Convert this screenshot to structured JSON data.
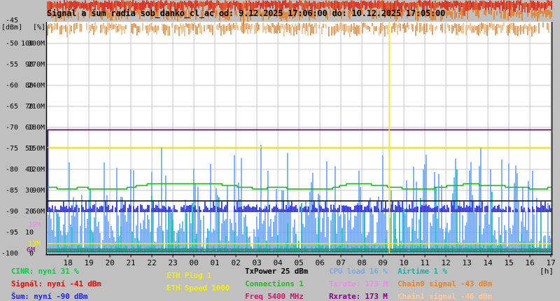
{
  "title": "Signál a šum radia sob_danko_cl_ac od: 9.12.2025 17:06:00 do: 10.12.2025 17:05:00",
  "chart_data": {
    "type": "line",
    "title": "Signál a šum radia sob_danko_cl_ac od: 9.12.2025 17:06:00 do: 10.12.2025 17:05:00",
    "time_from": "9.12.2025 17:06:00",
    "time_to": "10.12.2025 17:05:00",
    "xlabel": "[h]",
    "x_ticks": [
      "18",
      "19",
      "20",
      "21",
      "22",
      "23",
      "00",
      "01",
      "02",
      "03",
      "04",
      "05",
      "06",
      "07",
      "08",
      "09",
      "10",
      "11",
      "12",
      "13",
      "14",
      "15",
      "16",
      "17"
    ],
    "grid": true,
    "y_axis_units": {
      "dbm_unit": "[dBm]",
      "pct_unit": "[%]",
      "dbm_top": "-45"
    },
    "y_axis_rows": [
      {
        "dbm": "-50",
        "pct": "100",
        "m": "300M"
      },
      {
        "dbm": "-55",
        "pct": "90",
        "m": "270M"
      },
      {
        "dbm": "-60",
        "pct": "80",
        "m": "240M"
      },
      {
        "dbm": "-65",
        "pct": "70",
        "m": "210M"
      },
      {
        "dbm": "-70",
        "pct": "60",
        "m": "180M"
      },
      {
        "dbm": "-75",
        "pct": "50",
        "m": "150M"
      },
      {
        "dbm": "-80",
        "pct": "40",
        "m": "120M"
      },
      {
        "dbm": "-85",
        "pct": "30",
        "m": "90M"
      },
      {
        "dbm": "-90",
        "pct": "20",
        "m": "60M"
      },
      {
        "dbm": "-95",
        "pct": "10",
        "m": ""
      },
      {
        "dbm": "-100",
        "pct": "0",
        "m": ""
      }
    ],
    "extra_axis_markers": [
      {
        "label": "39M",
        "color": "#EE8CEE",
        "value_m": 39
      },
      {
        "label": "13M",
        "color": "#F0F000",
        "value_m": 13
      },
      {
        "label": "6M",
        "color": "#880088",
        "value_m": 6
      }
    ],
    "series": [
      {
        "name": "Signál",
        "unit": "dBm",
        "color": "#FF2000",
        "current": -41,
        "range": [
          -43,
          -40
        ],
        "style": "noisy band clipped above scale top"
      },
      {
        "name": "Chain0 signal",
        "unit": "dBm",
        "color": "#FF7800",
        "current": -43,
        "range": [
          -44,
          -42
        ],
        "style": "noisy band"
      },
      {
        "name": "Chain1 signal",
        "unit": "dBm",
        "color": "#FFB468",
        "current": -46,
        "range": [
          -48,
          -45
        ],
        "style": "noisy band"
      },
      {
        "name": "Šum",
        "unit": "dBm",
        "color": "#2020CC",
        "current": -90,
        "range": [
          -90,
          -88
        ],
        "style": "noisy band just above -90"
      },
      {
        "name": "CINR",
        "unit": "%",
        "color": "#00C000",
        "current": 31,
        "range": [
          31,
          33
        ],
        "style": "stepped line"
      },
      {
        "name": "TxPower",
        "unit": "dBm",
        "color": "#000000",
        "current": 25,
        "style": "flat line at 25 on % scale"
      },
      {
        "name": "CPU load",
        "unit": "%",
        "color": "#6FA0EE",
        "current": 16,
        "range": [
          0,
          56
        ],
        "style": "dense vertical spikes"
      },
      {
        "name": "Airtime",
        "unit": "%",
        "color": "#14B2A6",
        "current": 1,
        "range": [
          0,
          48
        ],
        "style": "sparse vertical spikes + bottom band"
      },
      {
        "name": "Txrate",
        "unit": "M",
        "color": "#EE8CEE",
        "current": 173,
        "style": "flat line (under Rxrate)"
      },
      {
        "name": "Rxrate",
        "unit": "M",
        "color": "#700070",
        "current": 173,
        "style": "flat line at 173M"
      },
      {
        "name": "ETH Speed",
        "unit": "",
        "color": "#F0F000",
        "current": 1000,
        "style": "flat yellow line mid-scale"
      },
      {
        "name": "ETH Plug",
        "unit": "",
        "color": "#F0F000",
        "current": 1,
        "style": "flat yellow line near bottom (13M)"
      },
      {
        "name": "Connections",
        "unit": "",
        "color": "#00A000",
        "current": 1,
        "style": "flat green line near bottom"
      },
      {
        "name": "Freq",
        "unit": "MHz",
        "color": "#D01868",
        "current": 5400
      }
    ],
    "event_marker": {
      "color": "#F0F000",
      "style": "vertical line ~09:15"
    }
  },
  "legend": {
    "columns": [
      {
        "items": [
          {
            "text": "CINR: nyní 31 %",
            "color": "#00D045"
          },
          {
            "text": "Signál: nyní -41 dBm",
            "color": "#FF0000"
          },
          {
            "text": "Šum: nyní -90 dBm",
            "color": "#2020FF"
          }
        ]
      },
      {
        "items": [
          {
            "text": "ETH Plug 1",
            "color": "#F0F000"
          },
          {
            "text": "ETH Speed 1000",
            "color": "#F0F000"
          }
        ]
      },
      {
        "items": [
          {
            "text": "TxPower 25 dBm",
            "color": "#000000"
          },
          {
            "text": "Connections 1",
            "color": "#28B428"
          },
          {
            "text": "Freq 5400 MHz",
            "color": "#D01868"
          }
        ]
      },
      {
        "items": [
          {
            "text": "CPU load 16 %",
            "color": "#7DA7E8"
          },
          {
            "text": "Txrate: 173 M",
            "color": "#EE8CEE"
          },
          {
            "text": "Rxrate: 173 M",
            "color": "#880088"
          }
        ]
      },
      {
        "items": [
          {
            "text": "Airtime 1 %",
            "color": "#14B2A6"
          },
          {
            "text": "Chain0 signal -43 dBm",
            "color": "#F08020"
          },
          {
            "text": "Chain1 signal -46 dBm",
            "color": "#FFC89B"
          }
        ]
      }
    ],
    "h_label": "[h]"
  },
  "colors": {
    "background": "#C0C0C0",
    "plot_background": "#FFFFFF",
    "grid": "#C6C6C6",
    "frame": "#000000"
  }
}
